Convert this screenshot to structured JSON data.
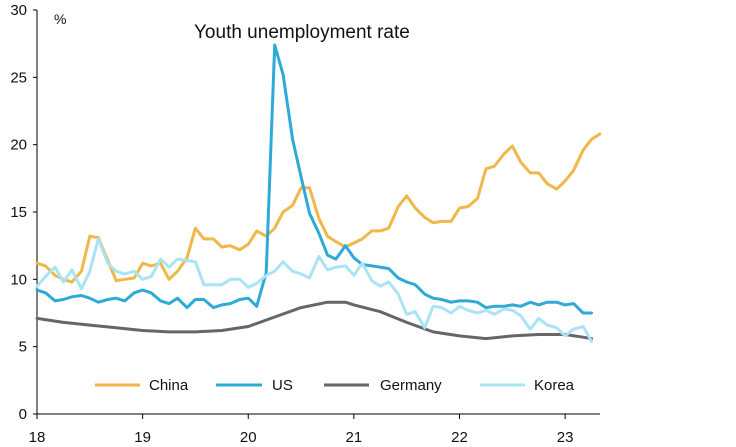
{
  "colors": {
    "china": "#F0B74A",
    "us": "#2DAAD6",
    "germany": "#666666",
    "korea": "#A9E4F3",
    "axis": "#000000"
  },
  "chart_data": {
    "type": "line",
    "title": "Youth unemployment rate",
    "ylabel": "%",
    "xlabel": "",
    "ylim": [
      0,
      30
    ],
    "yticks": [
      0,
      5,
      10,
      15,
      20,
      25,
      30
    ],
    "xlim": [
      2018.0,
      2023.33
    ],
    "xtick_positions": [
      2018,
      2019,
      2020,
      2021,
      2022,
      2023
    ],
    "xtick_labels": [
      "18",
      "19",
      "20",
      "21",
      "22",
      "23"
    ],
    "grid": false,
    "legend": "bottom",
    "series": [
      {
        "name": "China",
        "color_key": "china",
        "x": [
          2018.0,
          2018.08,
          2018.17,
          2018.25,
          2018.33,
          2018.42,
          2018.5,
          2018.58,
          2018.67,
          2018.75,
          2018.83,
          2018.92,
          2019.0,
          2019.08,
          2019.17,
          2019.25,
          2019.33,
          2019.42,
          2019.5,
          2019.58,
          2019.67,
          2019.75,
          2019.83,
          2019.92,
          2020.0,
          2020.08,
          2020.17,
          2020.25,
          2020.33,
          2020.42,
          2020.5,
          2020.58,
          2020.67,
          2020.75,
          2020.83,
          2020.92,
          2021.0,
          2021.08,
          2021.17,
          2021.25,
          2021.33,
          2021.42,
          2021.5,
          2021.58,
          2021.67,
          2021.75,
          2021.83,
          2021.92,
          2022.0,
          2022.08,
          2022.17,
          2022.25,
          2022.33,
          2022.42,
          2022.5,
          2022.58,
          2022.67,
          2022.75,
          2022.83,
          2022.92,
          2023.0,
          2023.08,
          2023.17,
          2023.25,
          2023.33
        ],
        "values": [
          11.2,
          11.0,
          10.3,
          10.0,
          9.8,
          10.6,
          13.2,
          13.1,
          11.4,
          9.9,
          10.0,
          10.1,
          11.2,
          11.0,
          11.2,
          10.0,
          10.6,
          11.6,
          13.8,
          13.0,
          13.0,
          12.4,
          12.5,
          12.2,
          12.6,
          13.6,
          13.2,
          13.8,
          15.0,
          15.5,
          16.8,
          16.8,
          14.5,
          13.2,
          12.8,
          12.4,
          12.7,
          13.0,
          13.6,
          13.6,
          13.8,
          15.4,
          16.2,
          15.3,
          14.6,
          14.2,
          14.3,
          14.3,
          15.3,
          15.4,
          16.0,
          18.2,
          18.4,
          19.3,
          19.9,
          18.7,
          17.9,
          17.9,
          17.1,
          16.7,
          17.3,
          18.1,
          19.6,
          20.4,
          20.8
        ]
      },
      {
        "name": "US",
        "color_key": "us",
        "x": [
          2018.0,
          2018.08,
          2018.17,
          2018.25,
          2018.33,
          2018.42,
          2018.5,
          2018.58,
          2018.67,
          2018.75,
          2018.83,
          2018.92,
          2019.0,
          2019.08,
          2019.17,
          2019.25,
          2019.33,
          2019.42,
          2019.5,
          2019.58,
          2019.67,
          2019.75,
          2019.83,
          2019.92,
          2020.0,
          2020.08,
          2020.17,
          2020.25,
          2020.33,
          2020.42,
          2020.5,
          2020.58,
          2020.67,
          2020.75,
          2020.83,
          2020.92,
          2021.0,
          2021.08,
          2021.17,
          2021.25,
          2021.33,
          2021.42,
          2021.5,
          2021.58,
          2021.67,
          2021.75,
          2021.83,
          2021.92,
          2022.0,
          2022.08,
          2022.17,
          2022.25,
          2022.33,
          2022.42,
          2022.5,
          2022.58,
          2022.67,
          2022.75,
          2022.83,
          2022.92,
          2023.0,
          2023.08,
          2023.17,
          2023.25
        ],
        "values": [
          9.2,
          9.0,
          8.4,
          8.5,
          8.7,
          8.8,
          8.6,
          8.3,
          8.5,
          8.6,
          8.4,
          9.0,
          9.2,
          9.0,
          8.4,
          8.2,
          8.6,
          7.9,
          8.5,
          8.5,
          7.9,
          8.1,
          8.2,
          8.5,
          8.6,
          8.0,
          10.5,
          27.4,
          25.2,
          20.4,
          17.6,
          14.9,
          13.4,
          11.8,
          11.5,
          12.5,
          11.6,
          11.1,
          11.0,
          10.9,
          10.8,
          10.1,
          9.8,
          9.6,
          8.9,
          8.6,
          8.5,
          8.3,
          8.4,
          8.4,
          8.3,
          7.9,
          8.0,
          8.0,
          8.1,
          8.0,
          8.3,
          8.1,
          8.3,
          8.3,
          8.1,
          8.2,
          7.5,
          7.5
        ]
      },
      {
        "name": "Germany",
        "color_key": "germany",
        "x": [
          2018.0,
          2018.25,
          2018.5,
          2018.75,
          2019.0,
          2019.25,
          2019.5,
          2019.75,
          2020.0,
          2020.25,
          2020.5,
          2020.75,
          2020.92,
          2021.0,
          2021.25,
          2021.5,
          2021.75,
          2022.0,
          2022.25,
          2022.5,
          2022.75,
          2023.0,
          2023.17,
          2023.25
        ],
        "values": [
          7.1,
          6.8,
          6.6,
          6.4,
          6.2,
          6.1,
          6.1,
          6.2,
          6.5,
          7.2,
          7.9,
          8.3,
          8.3,
          8.1,
          7.6,
          6.8,
          6.1,
          5.8,
          5.6,
          5.8,
          5.9,
          5.9,
          5.7,
          5.6
        ]
      },
      {
        "name": "Korea",
        "color_key": "korea",
        "x": [
          2018.0,
          2018.08,
          2018.17,
          2018.25,
          2018.33,
          2018.42,
          2018.5,
          2018.58,
          2018.67,
          2018.75,
          2018.83,
          2018.92,
          2019.0,
          2019.08,
          2019.17,
          2019.25,
          2019.33,
          2019.42,
          2019.5,
          2019.58,
          2019.67,
          2019.75,
          2019.83,
          2019.92,
          2020.0,
          2020.08,
          2020.17,
          2020.25,
          2020.33,
          2020.42,
          2020.5,
          2020.58,
          2020.67,
          2020.75,
          2020.83,
          2020.92,
          2021.0,
          2021.08,
          2021.17,
          2021.25,
          2021.33,
          2021.42,
          2021.5,
          2021.58,
          2021.67,
          2021.75,
          2021.83,
          2021.92,
          2022.0,
          2022.08,
          2022.17,
          2022.25,
          2022.33,
          2022.42,
          2022.5,
          2022.58,
          2022.67,
          2022.75,
          2022.83,
          2022.92,
          2023.0,
          2023.08,
          2023.17,
          2023.25
        ],
        "values": [
          9.5,
          10.2,
          10.9,
          9.8,
          10.7,
          9.3,
          10.6,
          13.0,
          11.2,
          10.6,
          10.4,
          10.6,
          10.0,
          10.2,
          11.5,
          10.9,
          11.5,
          11.4,
          11.3,
          9.6,
          9.6,
          9.6,
          10.0,
          10.0,
          9.4,
          9.7,
          10.3,
          10.6,
          11.3,
          10.6,
          10.4,
          10.1,
          11.7,
          10.7,
          10.9,
          11.0,
          10.3,
          11.2,
          9.9,
          9.5,
          9.8,
          8.9,
          7.4,
          7.6,
          6.4,
          8.0,
          7.9,
          7.5,
          8.0,
          7.7,
          7.5,
          7.7,
          7.4,
          7.8,
          7.7,
          7.3,
          6.3,
          7.1,
          6.6,
          6.4,
          5.8,
          6.3,
          6.5,
          5.4
        ]
      }
    ]
  }
}
